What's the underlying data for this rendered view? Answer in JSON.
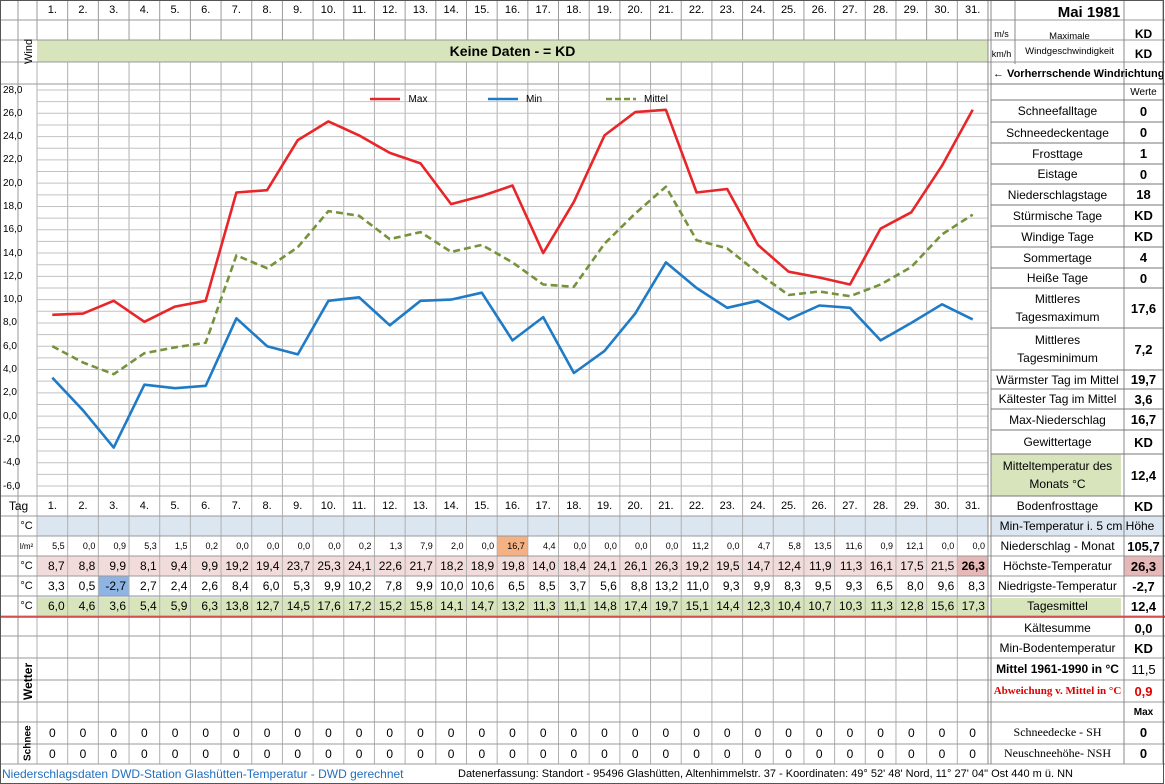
{
  "title": "Mai 1981",
  "days": [
    "1.",
    "2.",
    "3.",
    "4.",
    "5.",
    "6.",
    "7.",
    "8.",
    "9.",
    "10.",
    "11.",
    "12.",
    "13.",
    "14.",
    "15.",
    "16.",
    "17.",
    "18.",
    "19.",
    "20.",
    "21.",
    "22.",
    "23.",
    "24.",
    "25.",
    "26.",
    "27.",
    "28.",
    "29.",
    "30.",
    "31."
  ],
  "wind": {
    "label": "Wind",
    "banner": "Keine Daten -  = KD",
    "unit_ms": "m/s",
    "unit_kmh": "km/h",
    "max_label": "Maximale Windgeschwindigkeit",
    "max_ms": "KD",
    "max_kmh": "KD",
    "direction_label": "← Vorherrschende Windrichtung"
  },
  "colors": {
    "max": "#e8262a",
    "min": "#1f7bc6",
    "mittel": "#76933c",
    "banner_bg": "#d8e4bc",
    "header_bg": "#dce6f1",
    "precip_bg": "#f2dcdb",
    "mittel_bg": "#d8e4bc",
    "highlight_orange": "#f4b183",
    "highlight_blue": "#8db4e2",
    "highlight_pink": "#e6b8b7"
  },
  "chart_data": {
    "type": "line",
    "x": [
      "1",
      "2",
      "3",
      "4",
      "5",
      "6",
      "7",
      "8",
      "9",
      "10",
      "11",
      "12",
      "13",
      "14",
      "15",
      "16",
      "17",
      "18",
      "19",
      "20",
      "21",
      "22",
      "23",
      "24",
      "25",
      "26",
      "27",
      "28",
      "29",
      "30",
      "31"
    ],
    "series": [
      {
        "name": "Max",
        "values": [
          8.7,
          8.8,
          9.9,
          8.1,
          9.4,
          9.9,
          19.2,
          19.4,
          23.7,
          25.3,
          24.1,
          22.6,
          21.7,
          18.2,
          18.9,
          19.8,
          14.0,
          18.4,
          24.1,
          26.1,
          26.3,
          19.2,
          19.5,
          14.7,
          12.4,
          11.9,
          11.3,
          16.1,
          17.5,
          21.5,
          26.3
        ]
      },
      {
        "name": "Min",
        "values": [
          3.3,
          0.5,
          -2.7,
          2.7,
          2.4,
          2.6,
          8.4,
          6.0,
          5.3,
          9.9,
          10.2,
          7.8,
          9.9,
          10.0,
          10.6,
          6.5,
          8.5,
          3.7,
          5.6,
          8.8,
          13.2,
          11.0,
          9.3,
          9.9,
          8.3,
          9.5,
          9.3,
          6.5,
          8.0,
          9.6,
          8.3
        ]
      },
      {
        "name": "Mittel",
        "values": [
          6.0,
          4.6,
          3.6,
          5.4,
          5.9,
          6.3,
          13.8,
          12.7,
          14.5,
          17.6,
          17.2,
          15.2,
          15.8,
          14.1,
          14.7,
          13.2,
          11.3,
          11.1,
          14.8,
          17.4,
          19.7,
          15.1,
          14.4,
          12.3,
          10.4,
          10.7,
          10.3,
          11.3,
          12.8,
          15.6,
          17.3
        ]
      }
    ],
    "y_ticks": [
      "28,0",
      "26,0",
      "24,0",
      "22,0",
      "20,0",
      "18,0",
      "16,0",
      "14,0",
      "12,0",
      "10,0",
      "8,0",
      "6,0",
      "4,0",
      "2,0",
      "0,0",
      "-2,0",
      "-4,0",
      "-6,0"
    ],
    "ylim": [
      -6,
      28
    ],
    "legend_position": "top",
    "grid": true
  },
  "stats_header": "Werte",
  "stats": [
    {
      "label": "Schneefalltage",
      "value": "0"
    },
    {
      "label": "Schneedeckentage",
      "value": "0"
    },
    {
      "label": "Frosttage",
      "value": "1"
    },
    {
      "label": "Eistage",
      "value": "0"
    },
    {
      "label": "Niederschlagstage",
      "value": "18"
    },
    {
      "label": "Stürmische Tage",
      "value": "KD"
    },
    {
      "label": "Windige Tage",
      "value": "KD"
    },
    {
      "label": "Sommertage",
      "value": "4"
    },
    {
      "label": "Heiße Tage",
      "value": "0"
    },
    {
      "label": "Mittleres Tagesmaximum",
      "value": "17,6"
    },
    {
      "label": "Mittleres Tagesminimum",
      "value": "7,2"
    },
    {
      "label": "Wärmster Tag im Mittel",
      "value": "19,7"
    },
    {
      "label": "Kältester Tag im Mittel",
      "value": "3,6"
    },
    {
      "label": "Max-Niederschlag",
      "value": "16,7"
    },
    {
      "label": "Gewittertage",
      "value": "KD"
    },
    {
      "label": "Mitteltemperatur des Monats °C",
      "value": "12,4"
    },
    {
      "label": "Bodenfrosttage",
      "value": "KD"
    }
  ],
  "table": {
    "tag_label": "Tag",
    "rows": [
      {
        "unit": "°C",
        "label": "Min-Temperatur i. 5 cm Höhe",
        "value": "",
        "cells": [
          "",
          "",
          "",
          "",
          "",
          "",
          "",
          "",
          "",
          "",
          "",
          "",
          "",
          "",
          "",
          "",
          "",
          "",
          "",
          "",
          "",
          "",
          "",
          "",
          "",
          "",
          "",
          "",
          "",
          "",
          ""
        ]
      },
      {
        "unit": "l/m²",
        "label": "Niederschlag - Monat",
        "value": "105,7",
        "cells": [
          "5,5",
          "0,0",
          "0,9",
          "5,3",
          "1,5",
          "0,2",
          "0,0",
          "0,0",
          "0,0",
          "0,0",
          "0,2",
          "1,3",
          "7,9",
          "2,0",
          "0,0",
          "16,7",
          "4,4",
          "0,0",
          "0,0",
          "0,0",
          "0,0",
          "11,2",
          "0,0",
          "4,7",
          "5,8",
          "13,5",
          "11,6",
          "0,9",
          "12,1",
          "0,0",
          "0,0"
        ]
      },
      {
        "unit": "°C",
        "label": "Höchste-Temperatur",
        "value": "26,3",
        "cells": [
          "8,7",
          "8,8",
          "9,9",
          "8,1",
          "9,4",
          "9,9",
          "19,2",
          "19,4",
          "23,7",
          "25,3",
          "24,1",
          "22,6",
          "21,7",
          "18,2",
          "18,9",
          "19,8",
          "14,0",
          "18,4",
          "24,1",
          "26,1",
          "26,3",
          "19,2",
          "19,5",
          "14,7",
          "12,4",
          "11,9",
          "11,3",
          "16,1",
          "17,5",
          "21,5",
          "26,3"
        ]
      },
      {
        "unit": "°C",
        "label": "Niedrigste-Temperatur",
        "value": "-2,7",
        "cells": [
          "3,3",
          "0,5",
          "-2,7",
          "2,7",
          "2,4",
          "2,6",
          "8,4",
          "6,0",
          "5,3",
          "9,9",
          "10,2",
          "7,8",
          "9,9",
          "10,0",
          "10,6",
          "6,5",
          "8,5",
          "3,7",
          "5,6",
          "8,8",
          "13,2",
          "11,0",
          "9,3",
          "9,9",
          "8,3",
          "9,5",
          "9,3",
          "6,5",
          "8,0",
          "9,6",
          "8,3"
        ]
      },
      {
        "unit": "°C",
        "label": "Tagesmittel",
        "value": "12,4",
        "cells": [
          "6,0",
          "4,6",
          "3,6",
          "5,4",
          "5,9",
          "6,3",
          "13,8",
          "12,7",
          "14,5",
          "17,6",
          "17,2",
          "15,2",
          "15,8",
          "14,1",
          "14,7",
          "13,2",
          "11,3",
          "11,1",
          "14,8",
          "17,4",
          "19,7",
          "15,1",
          "14,4",
          "12,3",
          "10,4",
          "10,7",
          "10,3",
          "11,3",
          "12,8",
          "15,6",
          "17,3"
        ]
      }
    ]
  },
  "lower_stats": [
    {
      "label": "Kältesumme",
      "value": "0,0"
    },
    {
      "label": "Min-Bodentemperatur",
      "value": "KD"
    },
    {
      "label": "Mittel 1961-1990 in °C",
      "value": "11,5"
    },
    {
      "label": "Abweichung v. Mittel in °C",
      "value": "0,9"
    }
  ],
  "max_label": "Max",
  "wetter_label": "Wetter",
  "schnee": {
    "label": "Schnee",
    "rows": [
      {
        "label": "Schneedecke -  SH",
        "value": "0",
        "cells": [
          "0",
          "0",
          "0",
          "0",
          "0",
          "0",
          "0",
          "0",
          "0",
          "0",
          "0",
          "0",
          "0",
          "0",
          "0",
          "0",
          "0",
          "0",
          "0",
          "0",
          "0",
          "0",
          "0",
          "0",
          "0",
          "0",
          "0",
          "0",
          "0",
          "0",
          "0"
        ]
      },
      {
        "label": "Neuschneehöhe- NSH",
        "value": "0",
        "cells": [
          "0",
          "0",
          "0",
          "0",
          "0",
          "0",
          "0",
          "0",
          "0",
          "0",
          "0",
          "0",
          "0",
          "0",
          "0",
          "0",
          "0",
          "0",
          "0",
          "0",
          "0",
          "0",
          "0",
          "0",
          "0",
          "0",
          "0",
          "0",
          "0",
          "0",
          "0"
        ]
      }
    ]
  },
  "footer": {
    "left": "Niederschlagsdaten DWD-Station Glashütten-Temperatur -  DWD gerechnet",
    "right": "Datenerfassung: Standort -  95496  Glashütten, Altenhimmelstr. 37 - Koordinaten: 49° 52' 48' Nord,  11° 27' 04\" Ost  440 m ü. NN"
  }
}
